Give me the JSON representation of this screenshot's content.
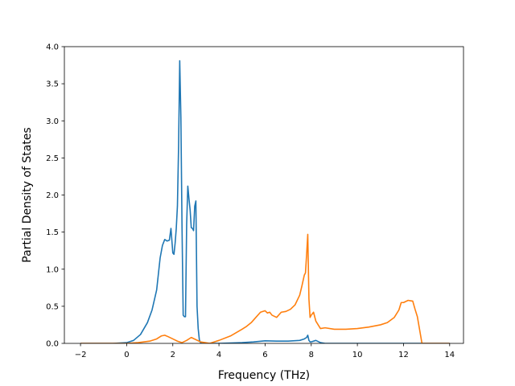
{
  "chart_data": {
    "type": "line",
    "title": "",
    "xlabel": "Frequency (THz)",
    "ylabel": "Partial Density of States",
    "xlim": [
      -2.7,
      14.6
    ],
    "ylim": [
      0,
      4.0
    ],
    "xticks": [
      -2,
      0,
      2,
      4,
      6,
      8,
      10,
      12,
      14
    ],
    "xtick_labels": [
      "−2",
      "0",
      "2",
      "4",
      "6",
      "8",
      "10",
      "12",
      "14"
    ],
    "yticks": [
      0,
      0.5,
      1.0,
      1.5,
      2.0,
      2.5,
      3.0,
      3.5,
      4.0
    ],
    "ytick_labels": [
      "0.0",
      "0.5",
      "1.0",
      "1.5",
      "2.0",
      "2.5",
      "3.0",
      "3.5",
      "4.0"
    ],
    "grid": false,
    "legend": "none",
    "series": [
      {
        "color": "#1f77b4",
        "x": [
          -2.0,
          -0.6,
          0.0,
          0.3,
          0.6,
          0.9,
          1.1,
          1.3,
          1.45,
          1.55,
          1.65,
          1.75,
          1.85,
          1.92,
          2.0,
          2.05,
          2.1,
          2.15,
          2.2,
          2.25,
          2.3,
          2.35,
          2.4,
          2.45,
          2.5,
          2.55,
          2.6,
          2.65,
          2.7,
          2.75,
          2.8,
          2.85,
          2.9,
          2.95,
          3.0,
          3.05,
          3.1,
          3.15,
          3.2,
          3.25,
          3.3,
          3.35,
          3.4,
          4.0,
          5.0,
          5.5,
          6.0,
          6.5,
          7.0,
          7.5,
          7.7,
          7.8,
          7.85,
          7.9,
          7.95,
          8.0,
          8.2,
          8.4,
          8.6,
          10.0,
          12.0,
          12.6,
          14.0
        ],
        "y": [
          0.0,
          0.0,
          0.01,
          0.04,
          0.12,
          0.28,
          0.45,
          0.72,
          1.15,
          1.32,
          1.4,
          1.38,
          1.39,
          1.55,
          1.22,
          1.2,
          1.35,
          1.55,
          1.85,
          2.65,
          3.81,
          3.05,
          1.55,
          0.38,
          0.36,
          0.36,
          1.6,
          2.12,
          1.95,
          1.8,
          1.56,
          1.55,
          1.52,
          1.85,
          1.92,
          0.5,
          0.2,
          0.05,
          0.01,
          0.0,
          0.0,
          0.0,
          0.0,
          0.0,
          0.01,
          0.02,
          0.035,
          0.03,
          0.03,
          0.04,
          0.06,
          0.08,
          0.11,
          0.04,
          0.02,
          0.02,
          0.04,
          0.01,
          0.0,
          0.0,
          0.0,
          0.0,
          0.0
        ]
      },
      {
        "color": "#ff7f0e",
        "x": [
          -2.0,
          -0.5,
          0.0,
          0.5,
          1.0,
          1.3,
          1.5,
          1.65,
          1.8,
          2.0,
          2.2,
          2.4,
          2.6,
          2.8,
          3.0,
          3.2,
          3.4,
          3.6,
          3.8,
          4.0,
          4.5,
          5.0,
          5.2,
          5.4,
          5.6,
          5.8,
          6.0,
          6.1,
          6.2,
          6.3,
          6.5,
          6.7,
          6.9,
          7.1,
          7.3,
          7.5,
          7.6,
          7.65,
          7.7,
          7.75,
          7.8,
          7.85,
          7.9,
          7.95,
          8.0,
          8.1,
          8.2,
          8.4,
          8.6,
          9.0,
          9.5,
          10.0,
          10.5,
          11.0,
          11.3,
          11.6,
          11.8,
          11.9,
          12.0,
          12.2,
          12.4,
          12.5,
          12.6,
          12.8,
          14.0
        ],
        "y": [
          0.0,
          0.0,
          0.0,
          0.01,
          0.03,
          0.06,
          0.1,
          0.11,
          0.09,
          0.06,
          0.03,
          0.01,
          0.04,
          0.08,
          0.05,
          0.02,
          0.01,
          0.0,
          0.02,
          0.04,
          0.1,
          0.19,
          0.23,
          0.28,
          0.35,
          0.42,
          0.44,
          0.41,
          0.42,
          0.38,
          0.35,
          0.42,
          0.43,
          0.46,
          0.52,
          0.65,
          0.78,
          0.85,
          0.92,
          0.95,
          1.2,
          1.47,
          0.6,
          0.35,
          0.38,
          0.42,
          0.3,
          0.2,
          0.21,
          0.19,
          0.19,
          0.2,
          0.22,
          0.25,
          0.28,
          0.35,
          0.45,
          0.55,
          0.55,
          0.58,
          0.57,
          0.46,
          0.36,
          0.0,
          0.0
        ]
      }
    ]
  }
}
